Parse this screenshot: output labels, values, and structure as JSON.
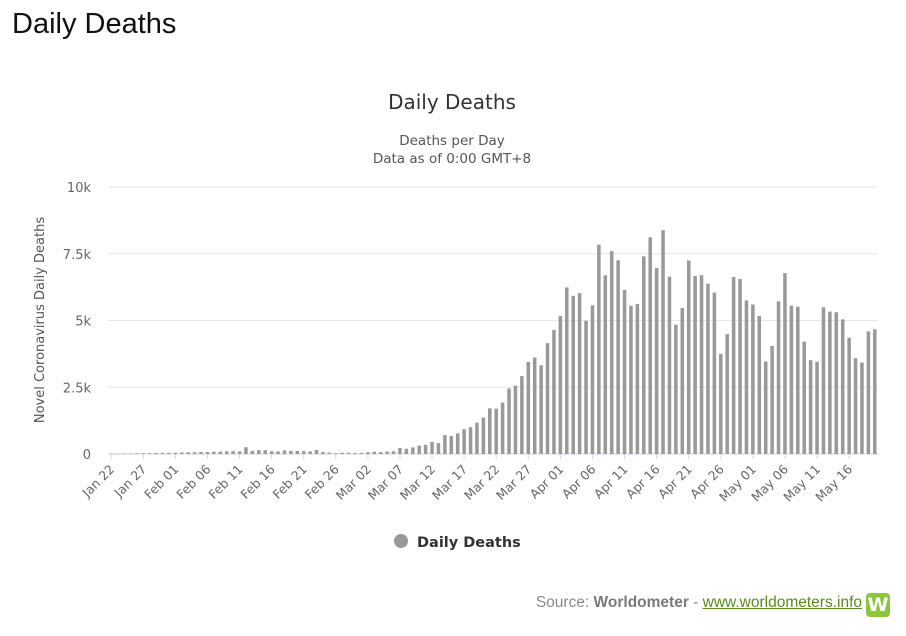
{
  "page": {
    "title": "Daily Deaths"
  },
  "chart_data": {
    "type": "bar",
    "title": "Daily Deaths",
    "subtitle_lines": [
      "Deaths per Day",
      "Data as of 0:00 GMT+8"
    ],
    "ylabel": "Novel Coronavirus Daily Deaths",
    "xlabel": "",
    "ylim": [
      0,
      10000
    ],
    "yticks": [
      {
        "value": 0,
        "label": "0"
      },
      {
        "value": 2500,
        "label": "2.5k"
      },
      {
        "value": 5000,
        "label": "5k"
      },
      {
        "value": 7500,
        "label": "7.5k"
      },
      {
        "value": 10000,
        "label": "10k"
      }
    ],
    "grid": true,
    "legend": {
      "position": "bottom-center",
      "items": [
        {
          "name": "Daily Deaths",
          "color": "#999999"
        }
      ]
    },
    "bar_color": "#999999",
    "categories": [
      "Jan 22",
      "Jan 23",
      "Jan 24",
      "Jan 25",
      "Jan 26",
      "Jan 27",
      "Jan 28",
      "Jan 29",
      "Jan 30",
      "Jan 31",
      "Feb 01",
      "Feb 02",
      "Feb 03",
      "Feb 04",
      "Feb 05",
      "Feb 06",
      "Feb 07",
      "Feb 08",
      "Feb 09",
      "Feb 10",
      "Feb 11",
      "Feb 12",
      "Feb 13",
      "Feb 14",
      "Feb 15",
      "Feb 16",
      "Feb 17",
      "Feb 18",
      "Feb 19",
      "Feb 20",
      "Feb 21",
      "Feb 22",
      "Feb 23",
      "Feb 24",
      "Feb 25",
      "Feb 26",
      "Feb 27",
      "Feb 28",
      "Feb 29",
      "Mar 01",
      "Mar 02",
      "Mar 03",
      "Mar 04",
      "Mar 05",
      "Mar 06",
      "Mar 07",
      "Mar 08",
      "Mar 09",
      "Mar 10",
      "Mar 11",
      "Mar 12",
      "Mar 13",
      "Mar 14",
      "Mar 15",
      "Mar 16",
      "Mar 17",
      "Mar 18",
      "Mar 19",
      "Mar 20",
      "Mar 21",
      "Mar 22",
      "Mar 23",
      "Mar 24",
      "Mar 25",
      "Mar 26",
      "Mar 27",
      "Mar 28",
      "Mar 29",
      "Mar 30",
      "Mar 31",
      "Apr 01",
      "Apr 02",
      "Apr 03",
      "Apr 04",
      "Apr 05",
      "Apr 06",
      "Apr 07",
      "Apr 08",
      "Apr 09",
      "Apr 10",
      "Apr 11",
      "Apr 12",
      "Apr 13",
      "Apr 14",
      "Apr 15",
      "Apr 16",
      "Apr 17",
      "Apr 18",
      "Apr 19",
      "Apr 20",
      "Apr 21",
      "Apr 22",
      "Apr 23",
      "Apr 24",
      "Apr 25",
      "Apr 26",
      "Apr 27",
      "Apr 28",
      "Apr 29",
      "Apr 30",
      "May 01",
      "May 02",
      "May 03",
      "May 04",
      "May 05",
      "May 06",
      "May 07",
      "May 08",
      "May 09",
      "May 10",
      "May 11",
      "May 12",
      "May 13",
      "May 14",
      "May 15",
      "May 16",
      "May 17",
      "May 18",
      "May 19",
      "May 20"
    ],
    "tick_labels": [
      "Jan 22",
      "Jan 27",
      "Feb 01",
      "Feb 06",
      "Feb 11",
      "Feb 16",
      "Feb 21",
      "Feb 26",
      "Mar 02",
      "Mar 07",
      "Mar 12",
      "Mar 17",
      "Mar 22",
      "Mar 27",
      "Apr 01",
      "Apr 06",
      "Apr 11",
      "Apr 16",
      "Apr 21",
      "Apr 26",
      "May 01",
      "May 06",
      "May 11",
      "May 16"
    ],
    "values": [
      17,
      8,
      16,
      14,
      24,
      26,
      26,
      38,
      43,
      46,
      45,
      57,
      64,
      65,
      73,
      73,
      86,
      89,
      97,
      108,
      97,
      254,
      121,
      143,
      142,
      105,
      98,
      136,
      115,
      118,
      109,
      97,
      150,
      71,
      52,
      29,
      44,
      47,
      35,
      42,
      67,
      81,
      71,
      91,
      104,
      225,
      198,
      247,
      310,
      347,
      452,
      408,
      707,
      674,
      774,
      929,
      1004,
      1172,
      1364,
      1712,
      1700,
      1927,
      2453,
      2559,
      2916,
      3444,
      3613,
      3323,
      4150,
      4643,
      5166,
      6239,
      5925,
      6024,
      4991,
      5569,
      7841,
      6693,
      7599,
      7257,
      6146,
      5554,
      5620,
      7403,
      8118,
      6966,
      8383,
      6646,
      4844,
      5467,
      7248,
      6670,
      6698,
      6381,
      6047,
      3749,
      4491,
      6631,
      6555,
      5752,
      5597,
      5173,
      3463,
      4048,
      5718,
      6776,
      5555,
      5514,
      4206,
      3516,
      3455,
      5494,
      5332,
      5308,
      5045,
      4355,
      3588,
      3424,
      4591,
      4671
    ]
  },
  "source": {
    "prefix": "Source: ",
    "brand": "Worldometer",
    "separator": " - ",
    "link_text": "www.worldometers.info",
    "logo_text": "W"
  }
}
